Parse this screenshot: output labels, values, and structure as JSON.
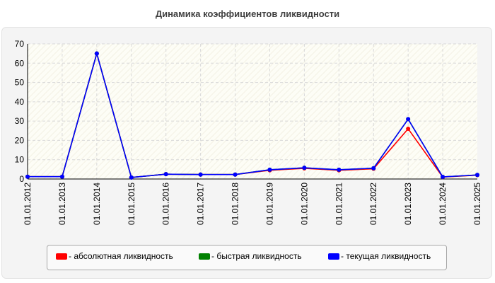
{
  "chart_data": {
    "type": "line",
    "title": "Динамика коэффициентов ликвидности",
    "categories": [
      "01.01.2012",
      "01.01.2013",
      "01.01.2014",
      "01.01.2015",
      "01.01.2016",
      "01.01.2017",
      "01.01.2018",
      "01.01.2019",
      "01.01.2020",
      "01.01.2021",
      "01.01.2022",
      "01.01.2023",
      "01.01.2024",
      "01.01.2025"
    ],
    "ylim": [
      0,
      70
    ],
    "yticks": [
      0,
      10,
      20,
      30,
      40,
      50,
      60,
      70
    ],
    "grid": true,
    "legend_position": "bottom",
    "series": [
      {
        "name": "- абсолютная ликвидность",
        "color": "#ff0000",
        "values": [
          1.2,
          1.2,
          65,
          0.8,
          2.5,
          2.3,
          2.3,
          4.5,
          5.5,
          4.5,
          5.3,
          26,
          1.0,
          2.0
        ]
      },
      {
        "name": "- быстрая ликвидность",
        "color": "#008000",
        "values": [
          1.2,
          1.2,
          65,
          0.8,
          2.5,
          2.3,
          2.3,
          4.8,
          5.8,
          4.8,
          5.6,
          31,
          1.1,
          2.1
        ]
      },
      {
        "name": "- текущая ликвидность",
        "color": "#0000ff",
        "values": [
          1.2,
          1.2,
          65,
          0.8,
          2.5,
          2.3,
          2.3,
          4.8,
          5.8,
          4.8,
          5.6,
          31,
          1.1,
          2.1
        ]
      }
    ]
  }
}
